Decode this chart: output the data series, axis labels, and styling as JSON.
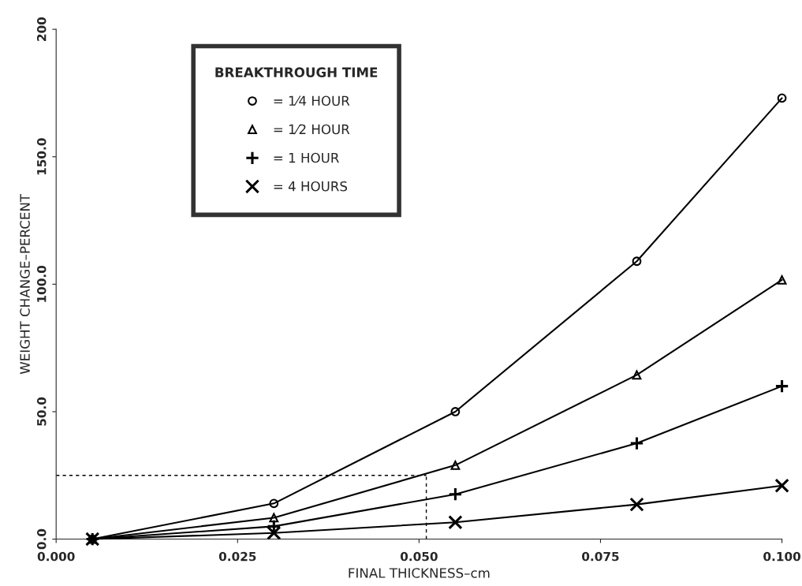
{
  "chart_data": {
    "type": "line",
    "xlabel": "FINAL THICKNESS–cm",
    "ylabel": "WEIGHT CHANGE–PERCENT",
    "legend_title": "BREAKTHROUGH TIME",
    "legend": "top left",
    "grid": false,
    "x": [
      0.005,
      0.03,
      0.055,
      0.08,
      0.1
    ],
    "series": [
      {
        "name": "= 1⁄4 HOUR",
        "color": "#000000",
        "marker": "circle",
        "values": [
          0,
          14,
          50,
          109,
          173
        ]
      },
      {
        "name": "= 1⁄2 HOUR",
        "color": "#000000",
        "marker": "triangle",
        "values": [
          0,
          8.4,
          29,
          64.4,
          101.7
        ]
      },
      {
        "name": "= 1 HOUR",
        "color": "#000000",
        "marker": "plus",
        "values": [
          0,
          5,
          17.6,
          37.6,
          60
        ]
      },
      {
        "name": "= 4 HOURS",
        "color": "#000000",
        "marker": "cross",
        "values": [
          0,
          2.4,
          6.6,
          13.6,
          21
        ]
      }
    ],
    "ref_lines": [
      {
        "axis": "y",
        "value": 25,
        "color": "#000000",
        "line_style": "dashed"
      },
      {
        "axis": "x",
        "value": 0.051,
        "color": "#000000",
        "line_style": "dashed"
      }
    ],
    "xlim": [
      0,
      0.1
    ],
    "xticks": [
      {
        "value": 0,
        "label": "0.000"
      },
      {
        "value": 0.025,
        "label": "0.025"
      },
      {
        "value": 0.05,
        "label": "0.050"
      },
      {
        "value": 0.075,
        "label": "0.075"
      },
      {
        "value": 0.1,
        "label": "0.100"
      }
    ],
    "ylim": [
      0,
      200
    ],
    "yticks": [
      {
        "value": 0,
        "label": "0.0"
      },
      {
        "value": 50,
        "label": "50.0"
      },
      {
        "value": 100,
        "label": "100.0"
      },
      {
        "value": 150,
        "label": "150.0"
      },
      {
        "value": 200,
        "label": "200"
      }
    ]
  }
}
